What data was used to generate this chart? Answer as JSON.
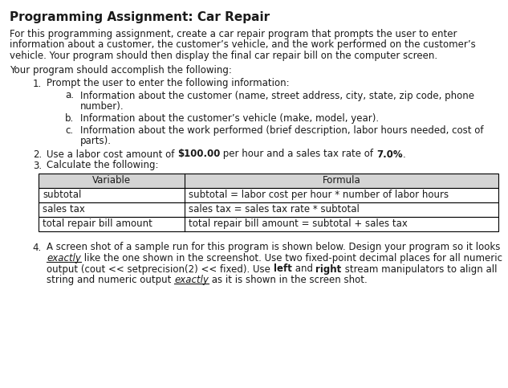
{
  "title": "Programming Assignment: Car Repair",
  "bg_color": "#ffffff",
  "text_color": "#1a1a1a",
  "para1_lines": [
    "For this programming assignment, create a car repair program that prompts the user to enter",
    "information about a customer, the customer’s vehicle, and the work performed on the customer’s",
    "vehicle. Your program should then display the final car repair bill on the computer screen."
  ],
  "para2": "Your program should accomplish the following:",
  "item1_text": "Prompt the user to enter the following information:",
  "item1a_lines": [
    "Information about the customer (name, street address, city, state, zip code, phone",
    "number)."
  ],
  "item1b_text": "Information about the customer’s vehicle (make, model, year).",
  "item1c_lines": [
    "Information about the work performed (brief description, labor hours needed, cost of",
    "parts)."
  ],
  "item2_segments": [
    {
      "text": "Use a labor cost amount of ",
      "bold": false
    },
    {
      "text": "$100.00",
      "bold": true
    },
    {
      "text": " per hour and a sales tax rate of ",
      "bold": false
    },
    {
      "text": "7.0%",
      "bold": true
    },
    {
      "text": ".",
      "bold": false
    }
  ],
  "item3_text": "Calculate the following:",
  "table_header": [
    "Variable",
    "Formula"
  ],
  "table_rows": [
    [
      "subtotal",
      "subtotal = labor cost per hour * number of labor hours"
    ],
    [
      "sales tax",
      "sales tax = sales tax rate * subtotal"
    ],
    [
      "total repair bill amount",
      "total repair bill amount = subtotal + sales tax"
    ]
  ],
  "table_header_bg": "#d4d4d4",
  "item4_line1_segments": [
    {
      "text": "A screen shot of a sample run for this program is shown below. Design your program so it looks",
      "bold": false,
      "italic": false,
      "underline": false
    }
  ],
  "item4_line2_segments": [
    {
      "text": "exactly",
      "bold": false,
      "italic": true,
      "underline": true
    },
    {
      "text": " like the one shown in the screenshot. Use two fixed-point decimal places for all numeric",
      "bold": false,
      "italic": false,
      "underline": false
    }
  ],
  "item4_line3_segments": [
    {
      "text": "output (cout << setprecision(2) << fixed). Use ",
      "bold": false,
      "italic": false,
      "underline": false
    },
    {
      "text": "left",
      "bold": true,
      "italic": false,
      "underline": false
    },
    {
      "text": " and ",
      "bold": false,
      "italic": false,
      "underline": false
    },
    {
      "text": "right",
      "bold": true,
      "italic": false,
      "underline": false
    },
    {
      "text": " stream manipulators to align all",
      "bold": false,
      "italic": false,
      "underline": false
    }
  ],
  "item4_line4_segments": [
    {
      "text": "string and numeric output ",
      "bold": false,
      "italic": false,
      "underline": false
    },
    {
      "text": "exactly",
      "bold": false,
      "italic": true,
      "underline": true
    },
    {
      "text": " as it is shown in the screen shot.",
      "bold": false,
      "italic": false,
      "underline": false
    }
  ]
}
